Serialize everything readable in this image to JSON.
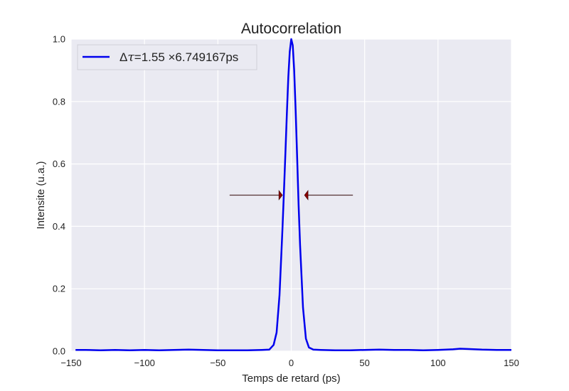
{
  "chart_data": {
    "type": "line",
    "title": "Autocorrelation",
    "xlabel": "Temps de retard (ps)",
    "ylabel": "Intensite (u.a.)",
    "xlim": [
      -150,
      150
    ],
    "ylim": [
      0,
      1.0
    ],
    "xticks": [
      -150,
      -100,
      -50,
      0,
      50,
      100,
      150
    ],
    "xtick_labels": [
      "−150",
      "−100",
      "−50",
      "0",
      "50",
      "100",
      "150"
    ],
    "yticks": [
      0.0,
      0.2,
      0.4,
      0.6,
      0.8,
      1.0
    ],
    "ytick_labels": [
      "0.0",
      "0.2",
      "0.4",
      "0.6",
      "0.8",
      "1.0"
    ],
    "grid": true,
    "legend_position": "top-left",
    "series": [
      {
        "name": "Δτ=1.55 ×6.749167ps",
        "color": "#0000ee",
        "x": [
          -147,
          -140,
          -130,
          -120,
          -110,
          -100,
          -90,
          -80,
          -70,
          -60,
          -50,
          -40,
          -30,
          -20,
          -15,
          -12,
          -10,
          -8,
          -6,
          -5,
          -4,
          -3,
          -2,
          -1,
          0,
          1,
          2,
          3,
          4,
          5,
          6,
          8,
          10,
          12,
          15,
          20,
          30,
          40,
          50,
          60,
          70,
          80,
          90,
          100,
          110,
          115,
          120,
          130,
          140,
          150
        ],
        "y": [
          0.004,
          0.004,
          0.003,
          0.004,
          0.003,
          0.004,
          0.003,
          0.004,
          0.005,
          0.004,
          0.003,
          0.003,
          0.003,
          0.004,
          0.005,
          0.02,
          0.06,
          0.18,
          0.39,
          0.51,
          0.63,
          0.76,
          0.88,
          0.96,
          1.0,
          0.98,
          0.9,
          0.77,
          0.62,
          0.47,
          0.34,
          0.14,
          0.04,
          0.012,
          0.005,
          0.004,
          0.003,
          0.003,
          0.004,
          0.005,
          0.004,
          0.004,
          0.003,
          0.004,
          0.006,
          0.008,
          0.007,
          0.005,
          0.004,
          0.004
        ]
      }
    ],
    "annotations": [
      {
        "type": "arrow",
        "from": [
          -42,
          0.5
        ],
        "to": [
          -6,
          0.5
        ],
        "color": "#8b0000"
      },
      {
        "type": "arrow",
        "from": [
          42,
          0.5
        ],
        "to": [
          9,
          0.5
        ],
        "color": "#8b0000"
      }
    ],
    "colors": {
      "plot_bg": "#eaeaf2",
      "grid": "#ffffff",
      "line": "#0000ee",
      "arrow": "#8b0000",
      "arrow_shaft": "#553333"
    }
  }
}
